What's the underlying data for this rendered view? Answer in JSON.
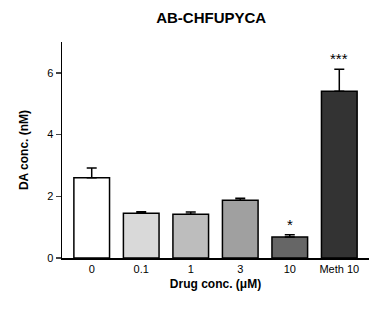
{
  "chart_data": {
    "type": "bar",
    "title": "AB-CHFUPYCA",
    "x_label": "Drug conc. (μM)",
    "y_label": "DA conc. (nM)",
    "categories": [
      "0",
      "0.1",
      "1",
      "3",
      "10",
      "Meth 10"
    ],
    "values": [
      2.6,
      1.45,
      1.42,
      1.87,
      0.68,
      5.4
    ],
    "errors": [
      0.32,
      0.05,
      0.07,
      0.07,
      0.07,
      0.72
    ],
    "colors": [
      "#ffffff",
      "#d9d9d9",
      "#bdbdbd",
      "#a0a0a0",
      "#666666",
      "#333333"
    ],
    "ylim": [
      0,
      7
    ],
    "yticks": [
      0,
      2,
      4,
      6
    ],
    "grid": false,
    "annotations": [
      {
        "category": "10",
        "text": "*"
      },
      {
        "category": "Meth 10",
        "text": "***"
      }
    ]
  }
}
